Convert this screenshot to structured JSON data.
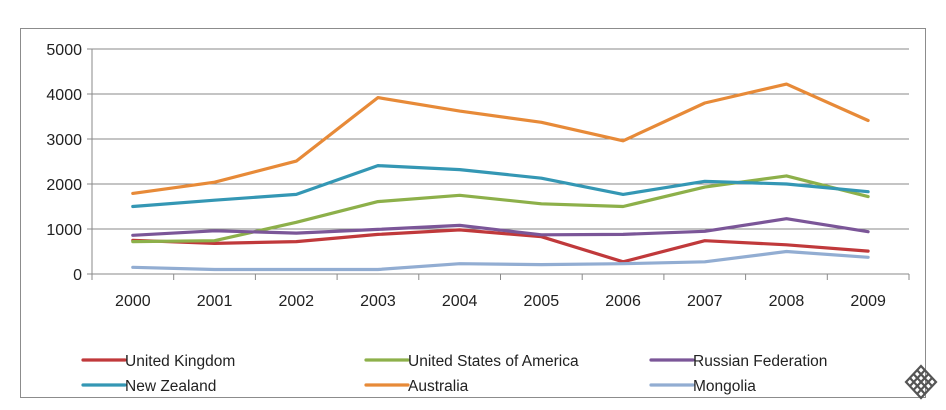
{
  "chart_data": {
    "type": "line",
    "title": "",
    "xlabel": "",
    "ylabel": "",
    "x": [
      "2000",
      "2001",
      "2002",
      "2003",
      "2004",
      "2005",
      "2006",
      "2007",
      "2008",
      "2009"
    ],
    "ylim": [
      0,
      5000
    ],
    "yticks": [
      0,
      1000,
      2000,
      3000,
      4000,
      5000
    ],
    "grid": "horizontal",
    "legend_position": "bottom",
    "series": [
      {
        "name": "United Kingdom",
        "color": "#c0393b",
        "values": [
          750,
          680,
          720,
          880,
          980,
          830,
          270,
          740,
          650,
          510
        ]
      },
      {
        "name": "United States of America",
        "color": "#8db04a",
        "values": [
          720,
          740,
          1150,
          1610,
          1750,
          1560,
          1500,
          1930,
          2180,
          1720
        ]
      },
      {
        "name": "Russian Federation",
        "color": "#7b5698",
        "values": [
          860,
          960,
          910,
          990,
          1080,
          870,
          880,
          950,
          1230,
          940
        ]
      },
      {
        "name": "New Zealand",
        "color": "#3497b4",
        "values": [
          1500,
          1640,
          1770,
          2410,
          2320,
          2130,
          1770,
          2060,
          2000,
          1830
        ]
      },
      {
        "name": "Australia",
        "color": "#e78a38",
        "values": [
          1790,
          2040,
          2510,
          3920,
          3620,
          3370,
          2960,
          3800,
          4220,
          3410
        ]
      },
      {
        "name": "Mongolia",
        "color": "#92add2",
        "values": [
          150,
          100,
          100,
          100,
          230,
          210,
          230,
          270,
          500,
          370
        ]
      }
    ]
  },
  "logo": {
    "icon": "knot-logo-icon"
  }
}
